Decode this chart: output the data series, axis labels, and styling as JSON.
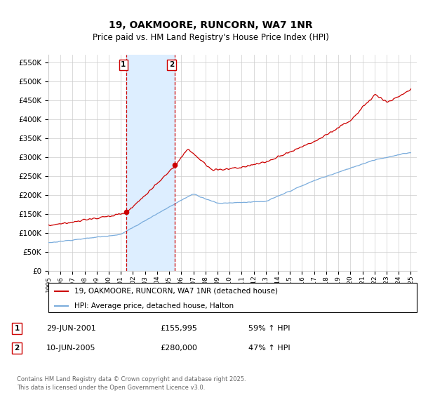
{
  "title": "19, OAKMOORE, RUNCORN, WA7 1NR",
  "subtitle": "Price paid vs. HM Land Registry's House Price Index (HPI)",
  "ylim": [
    0,
    570000
  ],
  "yticks": [
    0,
    50000,
    100000,
    150000,
    200000,
    250000,
    300000,
    350000,
    400000,
    450000,
    500000,
    550000
  ],
  "x_start_year": 1995,
  "x_end_year": 2025,
  "transaction1_year": 2001.46,
  "transaction1_price": 155995,
  "transaction1_label": "29-JUN-2001",
  "transaction1_hpi_pct": "59% ↑ HPI",
  "transaction2_year": 2005.44,
  "transaction2_price": 280000,
  "transaction2_label": "10-JUN-2005",
  "transaction2_hpi_pct": "47% ↑ HPI",
  "legend_label_red": "19, OAKMOORE, RUNCORN, WA7 1NR (detached house)",
  "legend_label_blue": "HPI: Average price, detached house, Halton",
  "footer": "Contains HM Land Registry data © Crown copyright and database right 2025.\nThis data is licensed under the Open Government Licence v3.0.",
  "red_color": "#cc0000",
  "blue_color": "#7aacdc",
  "highlight_fill": "#ddeeff",
  "vline_color": "#cc0000",
  "grid_color": "#cccccc",
  "background_color": "#ffffff"
}
